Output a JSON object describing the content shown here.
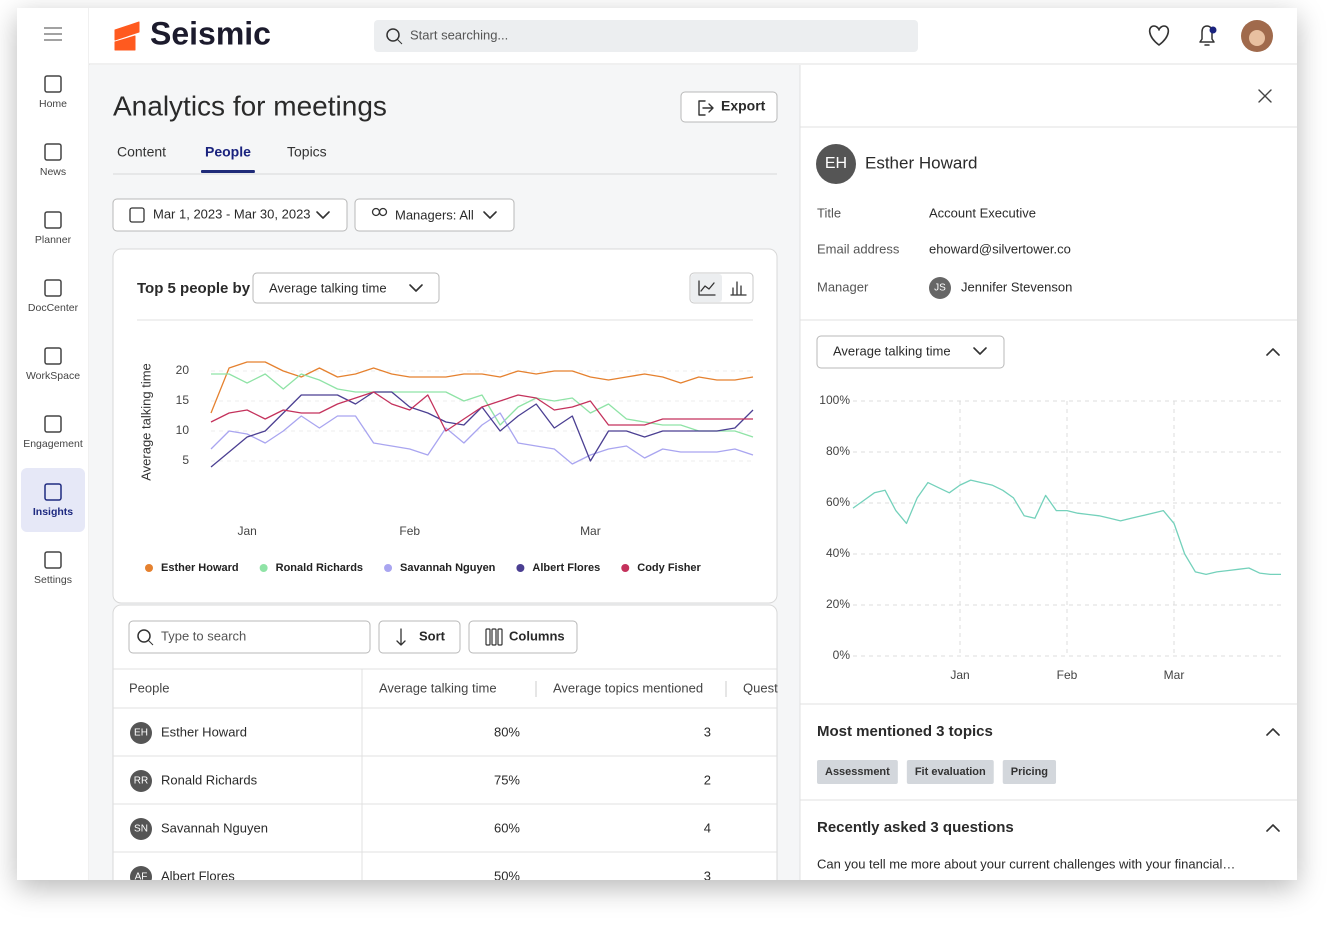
{
  "nav": {
    "items": [
      "Home",
      "News",
      "Planner",
      "DocCenter",
      "WorkSpace",
      "Engagement",
      "Insights",
      "Settings"
    ],
    "active": 6
  },
  "header": {
    "brand": "Seismic",
    "search_placeholder": "Start searching..."
  },
  "page": {
    "title": "Analytics for meetings",
    "export": "Export",
    "tabs": [
      "Content",
      "People",
      "Topics"
    ],
    "active_tab": 1,
    "date_range": "Mar 1, 2023 - Mar 30, 2023",
    "managers": "Managers: All"
  },
  "chart_data": [
    {
      "type": "line",
      "title": "Top 5 people by",
      "metric": "Average talking time",
      "y_label": "Average talking time",
      "categories": [
        null,
        null,
        "Jan",
        null,
        null,
        null,
        null,
        null,
        null,
        null,
        null,
        "Feb",
        null,
        null,
        null,
        null,
        null,
        null,
        null,
        null,
        null,
        "Mar",
        null,
        null,
        null,
        null,
        null,
        null,
        null,
        null,
        null
      ],
      "series": [
        {
          "name": "Esther Howard",
          "color": "#e5812f",
          "values": [
            13,
            20.5,
            21.5,
            21.5,
            20,
            19,
            20.5,
            19,
            19.5,
            20.5,
            19.5,
            19,
            19,
            19,
            19.5,
            19.5,
            19,
            20,
            19.5,
            20,
            20,
            19,
            18.5,
            19,
            19.5,
            19,
            18,
            19,
            18.5,
            18.5,
            19
          ]
        },
        {
          "name": "Ronald Richards",
          "color": "#8fe3a6",
          "values": [
            19.5,
            19.5,
            18,
            19.5,
            17,
            19.5,
            18.5,
            17,
            16.5,
            16.5,
            16.5,
            16.5,
            16.5,
            16.5,
            15,
            16,
            11,
            14,
            15.5,
            15,
            15.5,
            13,
            14.5,
            12,
            11.5,
            11,
            11,
            10,
            10,
            10,
            9
          ]
        },
        {
          "name": "Savannah Nguyen",
          "color": "#a9a5f0",
          "values": [
            7,
            10,
            9.5,
            8,
            10,
            12.5,
            10.5,
            12.5,
            12.5,
            8,
            7.5,
            7,
            6,
            10.5,
            8,
            11,
            13,
            8,
            7.5,
            7,
            4.5,
            6,
            7,
            7.5,
            5.5,
            7,
            6.5,
            6.5,
            6.5,
            7,
            6
          ]
        },
        {
          "name": "Albert Flores",
          "color": "#4b3f92",
          "values": [
            4,
            6.5,
            9,
            10,
            13,
            16,
            16,
            16,
            14.5,
            16.5,
            16.5,
            14,
            13,
            11.5,
            11,
            14,
            10,
            12.5,
            14.5,
            10.5,
            12.5,
            5,
            10,
            10,
            9,
            10,
            10,
            10,
            10,
            10.5,
            13.5
          ]
        },
        {
          "name": "Cody Fisher",
          "color": "#c4325c",
          "values": [
            11.5,
            13,
            13.5,
            12,
            13.5,
            13,
            13,
            14.5,
            15.5,
            16.5,
            14.5,
            13.5,
            16,
            10,
            12,
            14,
            15,
            16,
            15.5,
            13.5,
            14,
            15,
            11,
            11,
            11,
            12,
            12,
            12,
            12,
            12,
            12
          ]
        }
      ],
      "ylim": [
        0,
        23
      ],
      "yticks": [
        5,
        10,
        15,
        20
      ],
      "grid": true,
      "legend": "bottom"
    },
    {
      "type": "line",
      "metric": "Average talking time",
      "categories": [
        null,
        null,
        null,
        null,
        null,
        null,
        null,
        null,
        null,
        null,
        "Jan",
        null,
        null,
        null,
        null,
        null,
        null,
        null,
        null,
        null,
        "Feb",
        null,
        null,
        null,
        null,
        null,
        null,
        null,
        null,
        null,
        "Mar",
        null,
        null,
        null,
        null,
        null,
        null,
        null,
        null,
        null,
        null
      ],
      "series": [
        {
          "color": "#74d1bb",
          "values": [
            58,
            61,
            64,
            65,
            57,
            52,
            62,
            68,
            66,
            64,
            67,
            69,
            68,
            67,
            65,
            62,
            55,
            54,
            63,
            57,
            57,
            56,
            55.5,
            55,
            54,
            53,
            54,
            55,
            56,
            57,
            52,
            40,
            33,
            32,
            33,
            33.5,
            34,
            34.5,
            32.5,
            32,
            32
          ]
        }
      ],
      "ylim": [
        0,
        100
      ],
      "yticks": [
        {
          "value": 0,
          "label": "0%"
        },
        {
          "value": 20,
          "label": "20%"
        },
        {
          "value": 40,
          "label": "40%"
        },
        {
          "value": 60,
          "label": "60%"
        },
        {
          "value": 80,
          "label": "80%"
        },
        {
          "value": 100,
          "label": "100%"
        }
      ],
      "grid": true,
      "xgrid": true
    }
  ],
  "table": {
    "search_placeholder": "Type to search",
    "sort": "Sort",
    "columns_button": "Columns",
    "columns": [
      "People",
      "Average talking time",
      "Average topics mentioned",
      "Quest"
    ],
    "rows": [
      [
        "EH",
        "Esther Howard",
        "80%",
        "3"
      ],
      [
        "RR",
        "Ronald Richards",
        "75%",
        "2"
      ],
      [
        "SN",
        "Savannah Nguyen",
        "60%",
        "4"
      ],
      [
        "AF",
        "Albert Flores",
        "50%",
        "3"
      ]
    ]
  },
  "detail": {
    "initials": "EH",
    "name": "Esther Howard",
    "fields": [
      [
        "Title",
        "Account Executive"
      ],
      [
        "Email address",
        "ehoward@silvertower.co"
      ],
      [
        "Manager",
        "Jennifer Stevenson"
      ]
    ],
    "manager_initials": "JS",
    "topics_title": "Most mentioned 3 topics",
    "topics": [
      "Assessment",
      "Fit evaluation",
      "Pricing"
    ],
    "questions_title": "Recently asked 3 questions",
    "questions": [
      "Can you tell me more about your current challenges with your financial…"
    ]
  }
}
